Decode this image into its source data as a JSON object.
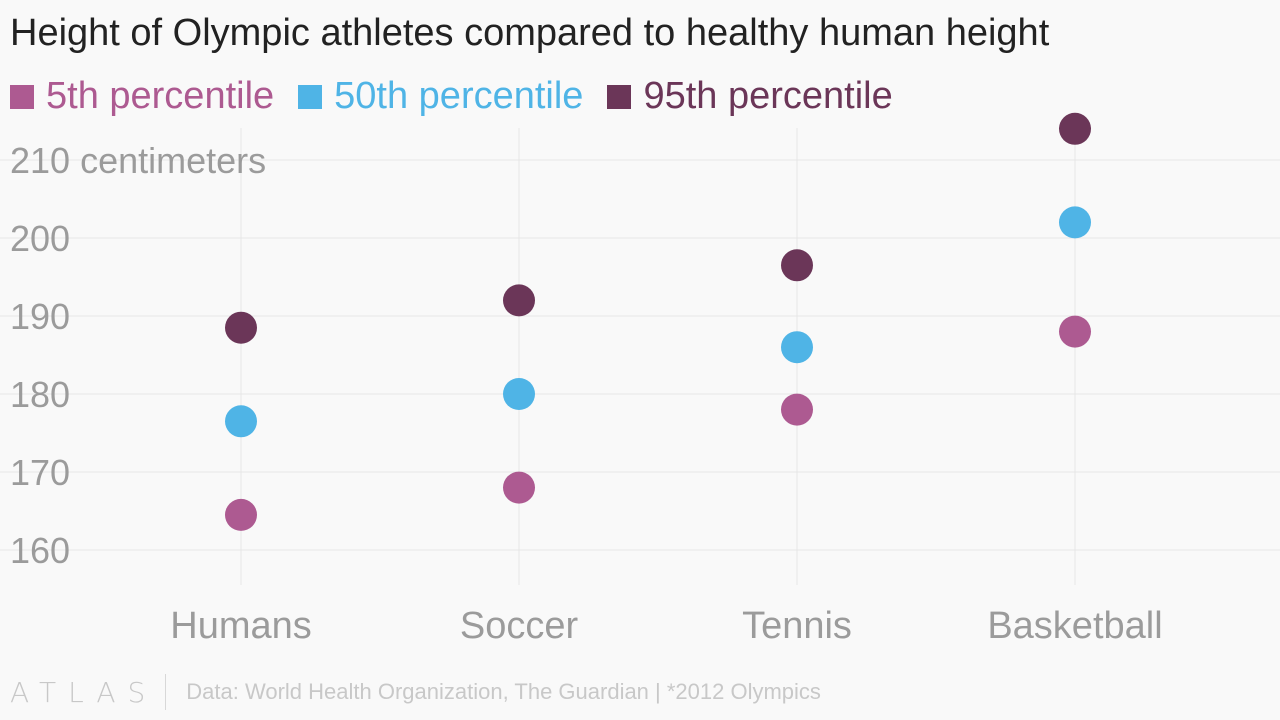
{
  "title": "Height of Olympic athletes compared to healthy human height",
  "footer": {
    "logo": "ATLAS",
    "source": "Data: World Health Organization, The Guardian | *2012 Olympics"
  },
  "colors": {
    "background": "#f9f9f9",
    "grid": "#e6e6e6",
    "tick_text": "#9b9b9b",
    "title_text": "#222222"
  },
  "chart_data": {
    "type": "scatter",
    "title": "Height of Olympic athletes compared to healthy human height",
    "xlabel": "",
    "ylabel": "centimeters",
    "categories": [
      "Humans",
      "Soccer",
      "Tennis",
      "Basketball"
    ],
    "ylim": [
      155,
      215
    ],
    "yticks": [
      160,
      170,
      180,
      190,
      200,
      210
    ],
    "ytick_labels": [
      "160",
      "170",
      "180",
      "190",
      "200",
      "210 centimeters"
    ],
    "grid": true,
    "legend": "top-left",
    "series": [
      {
        "name": "5th percentile",
        "color": "#ad5a91",
        "values": [
          164.5,
          168,
          178,
          188
        ]
      },
      {
        "name": "50th percentile",
        "color": "#4fb4e6",
        "values": [
          176.5,
          180,
          186,
          202
        ]
      },
      {
        "name": "95th percentile",
        "color": "#6b3658",
        "values": [
          188.5,
          192,
          196.5,
          214
        ]
      }
    ]
  }
}
